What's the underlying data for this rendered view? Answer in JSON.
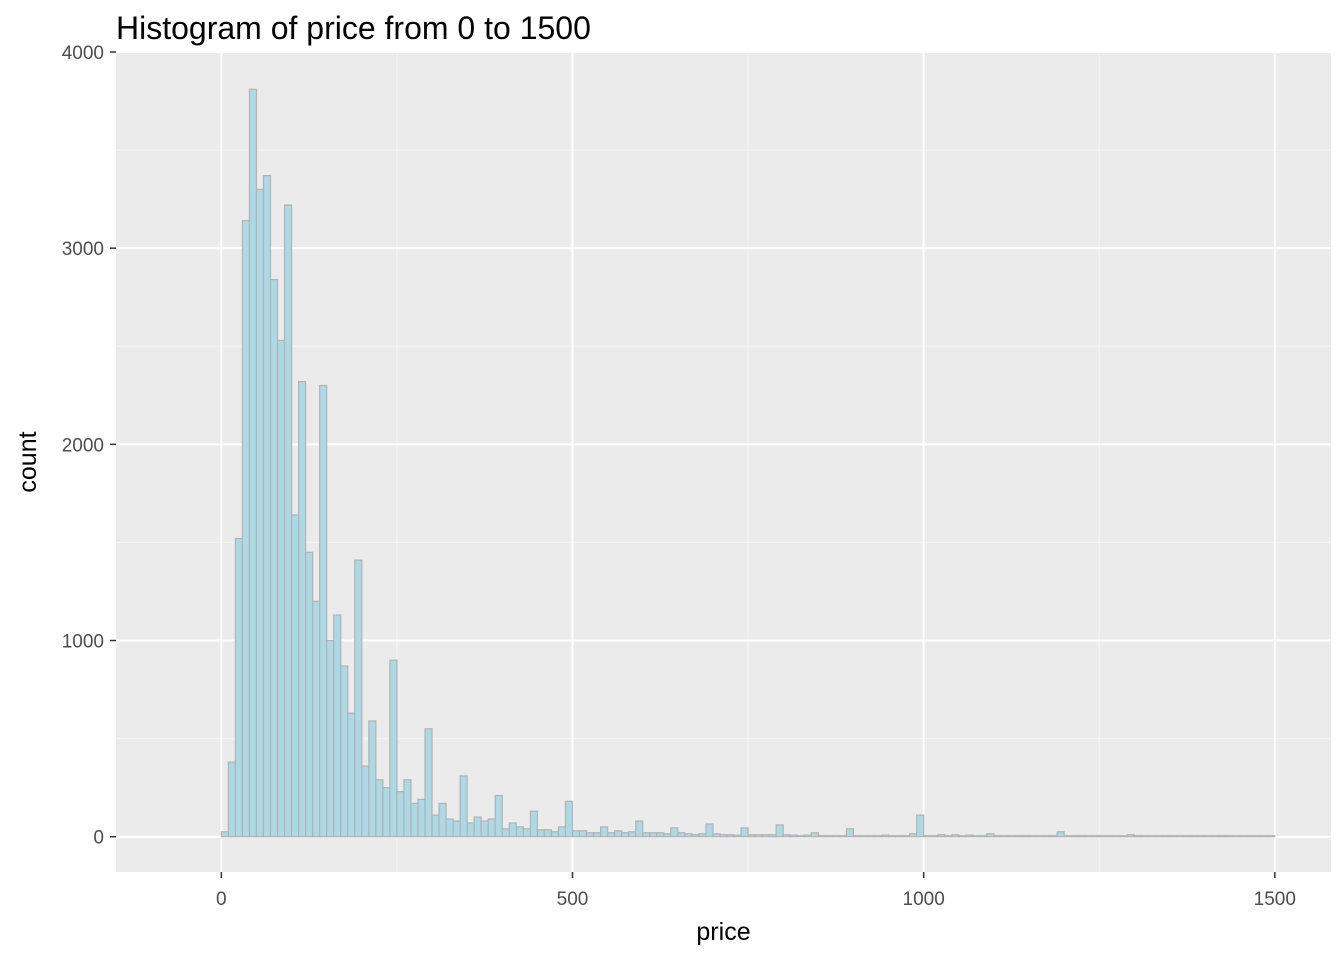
{
  "chart_data": {
    "type": "bar",
    "title": "Histogram of price from 0 to 1500",
    "xlabel": "price",
    "ylabel": "count",
    "xlim": [
      -150,
      1580
    ],
    "ylim": [
      -180,
      4000
    ],
    "xticks": [
      0,
      500,
      1000,
      1500
    ],
    "yticks": [
      0,
      1000,
      2000,
      3000,
      4000
    ],
    "xtick_labels": [
      "0",
      "500",
      "1000",
      "1500"
    ],
    "ytick_labels": [
      "0",
      "1000",
      "2000",
      "3000",
      "4000"
    ],
    "bin_width": 10,
    "bin_start": 0,
    "values": [
      25,
      380,
      1520,
      3140,
      3810,
      3300,
      3370,
      2840,
      2530,
      3220,
      1640,
      2320,
      1450,
      1200,
      2300,
      1000,
      1130,
      870,
      630,
      1410,
      360,
      590,
      290,
      250,
      900,
      230,
      290,
      170,
      190,
      550,
      110,
      170,
      90,
      80,
      310,
      70,
      100,
      80,
      90,
      210,
      40,
      70,
      50,
      40,
      130,
      35,
      35,
      25,
      50,
      180,
      30,
      30,
      20,
      20,
      50,
      20,
      30,
      20,
      25,
      80,
      20,
      20,
      20,
      15,
      45,
      20,
      15,
      10,
      15,
      65,
      15,
      10,
      10,
      8,
      45,
      10,
      10,
      10,
      10,
      60,
      10,
      8,
      5,
      8,
      20,
      5,
      5,
      5,
      5,
      40,
      5,
      5,
      5,
      5,
      8,
      5,
      5,
      5,
      15,
      110,
      5,
      5,
      10,
      5,
      10,
      5,
      8,
      5,
      5,
      15,
      5,
      5,
      5,
      5,
      5,
      5,
      5,
      5,
      5,
      25,
      5,
      5,
      5,
      5,
      5,
      5,
      5,
      5,
      5,
      10,
      5,
      5,
      5,
      5,
      5,
      5,
      5,
      5,
      5,
      5,
      5,
      5,
      5,
      5,
      5,
      5,
      5,
      5,
      5,
      5
    ],
    "bar_fill": "#add8e6",
    "bar_stroke": "#b3b3b3",
    "panel_background": "#ebebeb",
    "grid_major_color": "#ffffff",
    "grid_minor_color": "#f5f5f5",
    "grid": true
  }
}
